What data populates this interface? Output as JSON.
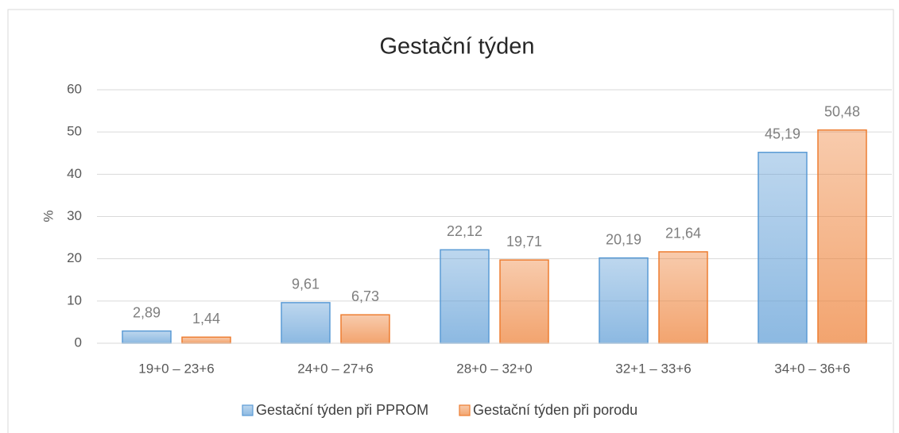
{
  "chart_data": {
    "type": "bar",
    "title": "Gestační týden",
    "y_label": "%",
    "categories": [
      "19+0 – 23+6",
      "24+0 – 27+6",
      "28+0 – 32+0",
      "32+1 – 33+6",
      "34+0 – 36+6"
    ],
    "series": [
      {
        "name": "Gestační týden při PPROM",
        "color": "#5b9bd5",
        "values": [
          2.89,
          9.61,
          22.12,
          20.19,
          45.19
        ],
        "value_labels": [
          "2,89",
          "9,61",
          "22,12",
          "20,19",
          "45,19"
        ]
      },
      {
        "name": "Gestační týden při porodu",
        "color": "#ed7d31",
        "values": [
          1.44,
          6.73,
          19.71,
          21.64,
          50.48
        ],
        "value_labels": [
          "1,44",
          "6,73",
          "19,71",
          "21,64",
          "50,48"
        ]
      }
    ],
    "ylim": [
      0,
      60
    ],
    "yticks": [
      0,
      10,
      20,
      30,
      40,
      50,
      60
    ],
    "grid": true,
    "legend": "bottom"
  }
}
